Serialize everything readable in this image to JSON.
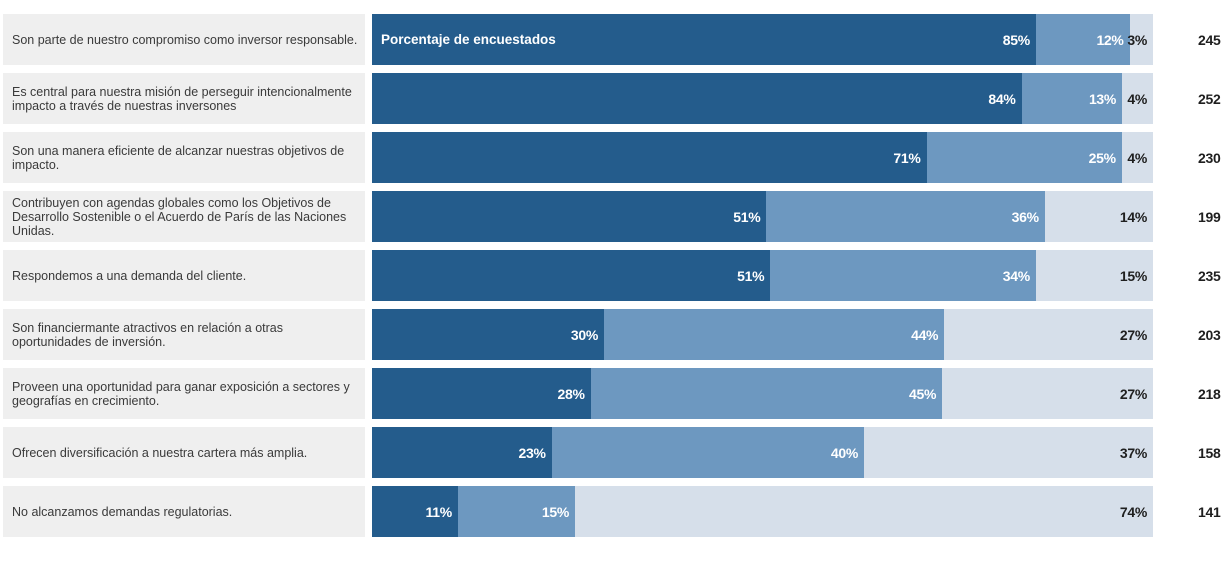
{
  "colors": {
    "primary": "#245c8c",
    "secondary": "#6d98c0",
    "tertiary": "#d6dfea",
    "label_bg": "#efefef"
  },
  "chart_data": {
    "type": "bar",
    "orientation": "horizontal",
    "stacked": true,
    "in_bar_label": "Porcentaje de encuestados",
    "categories": [
      "Son parte de nuestro compromiso como inversor responsable.",
      "Es central para nuestra misión de perseguir intencionalmente impacto a través de nuestras inversones",
      "Son una manera eficiente de alcanzar nuestras objetivos de impacto.",
      "Contribuyen con agendas globales como los Objetivos de Desarrollo Sostenible o el Acuerdo de París de las Naciones Unidas.",
      "Respondemos a una demanda del cliente.",
      "Son financiermante atractivos en relación a otras oportunidades de inversión.",
      "Proveen una oportunidad para ganar exposición a sectores y geografías en crecimiento.",
      "Ofrecen diversificación a nuestra cartera más amplia.",
      "No alcanzamos demandas regulatorias."
    ],
    "series": [
      {
        "values": [
          85,
          84,
          71,
          51,
          51,
          30,
          28,
          23,
          11
        ]
      },
      {
        "values": [
          12,
          13,
          25,
          36,
          34,
          44,
          45,
          40,
          15
        ]
      },
      {
        "values": [
          3,
          4,
          4,
          14,
          15,
          27,
          27,
          37,
          74
        ]
      }
    ],
    "n": [
      245,
      252,
      230,
      199,
      235,
      203,
      218,
      158,
      141
    ],
    "xlim": [
      0,
      100
    ],
    "grid": false,
    "legend": "none"
  }
}
